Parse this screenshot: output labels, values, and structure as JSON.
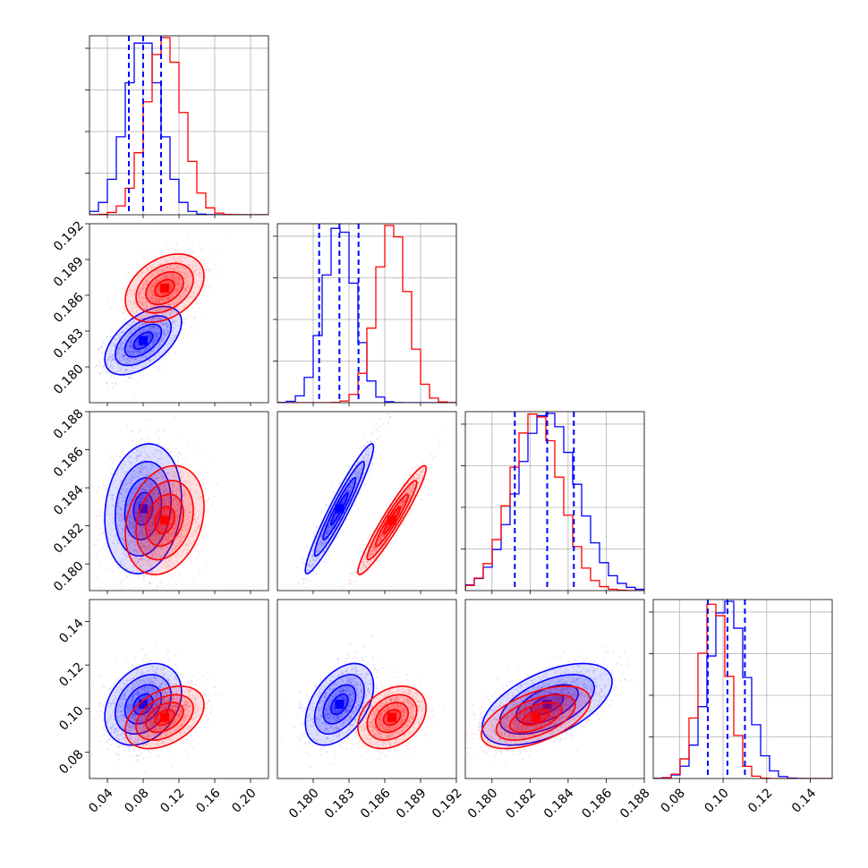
{
  "chart_data": {
    "type": "corner",
    "parameters": [
      {
        "range": [
          0.02,
          0.22
        ],
        "ticks": [
          "0.04",
          "0.08",
          "0.12",
          "0.16",
          "0.20"
        ],
        "tick_values": [
          0.04,
          0.08,
          0.12,
          0.16,
          0.2
        ]
      },
      {
        "range": [
          0.177,
          0.192
        ],
        "ticks": [
          "0.180",
          "0.183",
          "0.186",
          "0.189",
          "0.192"
        ],
        "tick_values": [
          0.18,
          0.183,
          0.186,
          0.189,
          0.192
        ]
      },
      {
        "range": [
          0.1786,
          0.188
        ],
        "ticks": [
          "0.180",
          "0.182",
          "0.184",
          "0.186",
          "0.188"
        ],
        "tick_values": [
          0.18,
          0.182,
          0.184,
          0.186,
          0.188
        ]
      },
      {
        "range": [
          0.068,
          0.15
        ],
        "ticks": [
          "0.08",
          "0.10",
          "0.12",
          "0.14"
        ],
        "tick_values": [
          0.08,
          0.1,
          0.12,
          0.14
        ]
      }
    ],
    "grid": true,
    "series": [
      {
        "color": "#0000ff",
        "means": [
          0.08,
          0.1822,
          0.1829,
          0.102
        ],
        "sigmas": [
          0.0195,
          0.0013,
          0.00155,
          0.0085
        ],
        "correlations": {
          "1-0": 0.55,
          "2-0": 0.15,
          "2-1": 0.95,
          "3-0": 0.3,
          "3-1": 0.45,
          "3-2": 0.55
        },
        "quantiles": [
          [
            0.064,
            0.08,
            0.1
          ],
          [
            0.1805,
            0.1822,
            0.1838
          ],
          [
            0.1812,
            0.1829,
            0.1843
          ],
          [
            0.093,
            0.102,
            0.11
          ]
        ]
      },
      {
        "color": "#ff0000",
        "means": [
          0.104,
          0.1866,
          0.1823,
          0.096
        ],
        "sigmas": [
          0.02,
          0.0013,
          0.0013,
          0.0065
        ],
        "correlations": {
          "1-0": 0.35,
          "2-0": 0.25,
          "2-1": 0.95,
          "3-0": 0.4,
          "3-1": 0.3,
          "3-2": 0.55
        }
      }
    ]
  }
}
